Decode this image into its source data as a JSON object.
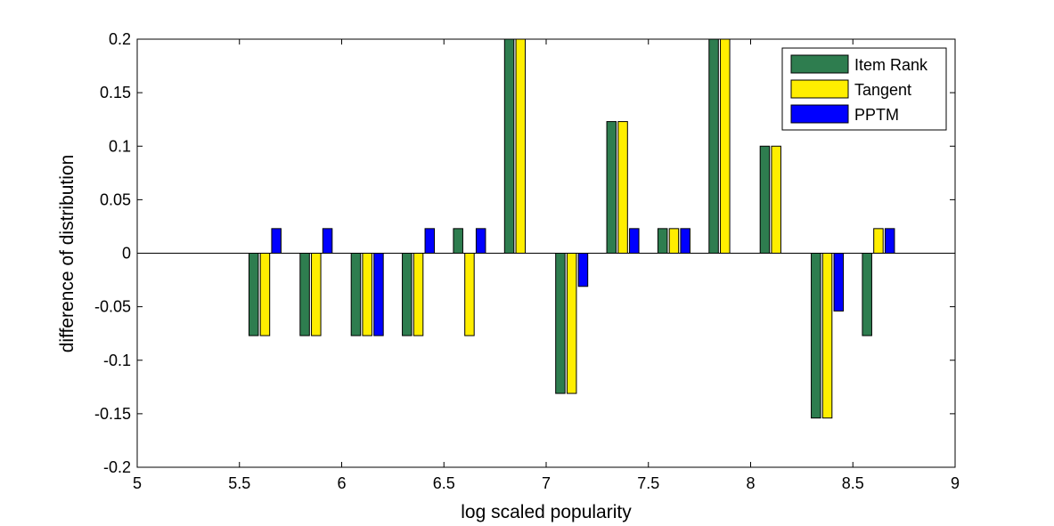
{
  "chart_data": {
    "type": "bar",
    "xlabel": "log scaled popularity",
    "ylabel": "difference of distribution",
    "xlim": [
      5,
      9
    ],
    "ylim": [
      -0.2,
      0.2
    ],
    "xticks": [
      "5",
      "5.5",
      "6",
      "6.5",
      "7",
      "7.5",
      "8",
      "8.5",
      "9"
    ],
    "yticks": [
      "-0.2",
      "-0.15",
      "-0.1",
      "-0.05",
      "0",
      "0.05",
      "0.1",
      "0.15",
      "0.2"
    ],
    "x": [
      5.625,
      5.875,
      6.125,
      6.375,
      6.625,
      6.875,
      7.125,
      7.375,
      7.625,
      7.875,
      8.125,
      8.375,
      8.625
    ],
    "series": [
      {
        "name": "Item Rank",
        "color": "#2e7d4f",
        "values": [
          -0.077,
          -0.077,
          -0.077,
          -0.077,
          0.023,
          0.2,
          -0.131,
          0.123,
          0.023,
          0.2,
          0.1,
          -0.154,
          -0.077
        ]
      },
      {
        "name": "Tangent",
        "color": "#ffee00",
        "values": [
          -0.077,
          -0.077,
          -0.077,
          -0.077,
          -0.077,
          0.2,
          -0.131,
          0.123,
          0.023,
          0.2,
          0.1,
          -0.154,
          0.023
        ]
      },
      {
        "name": "PPTM",
        "color": "#0000ff",
        "values": [
          0.023,
          0.023,
          -0.077,
          0.023,
          0.023,
          0,
          -0.031,
          0.023,
          0.023,
          0,
          0,
          -0.054,
          0.023
        ]
      }
    ],
    "legend_position": "top-right",
    "grid": false
  }
}
